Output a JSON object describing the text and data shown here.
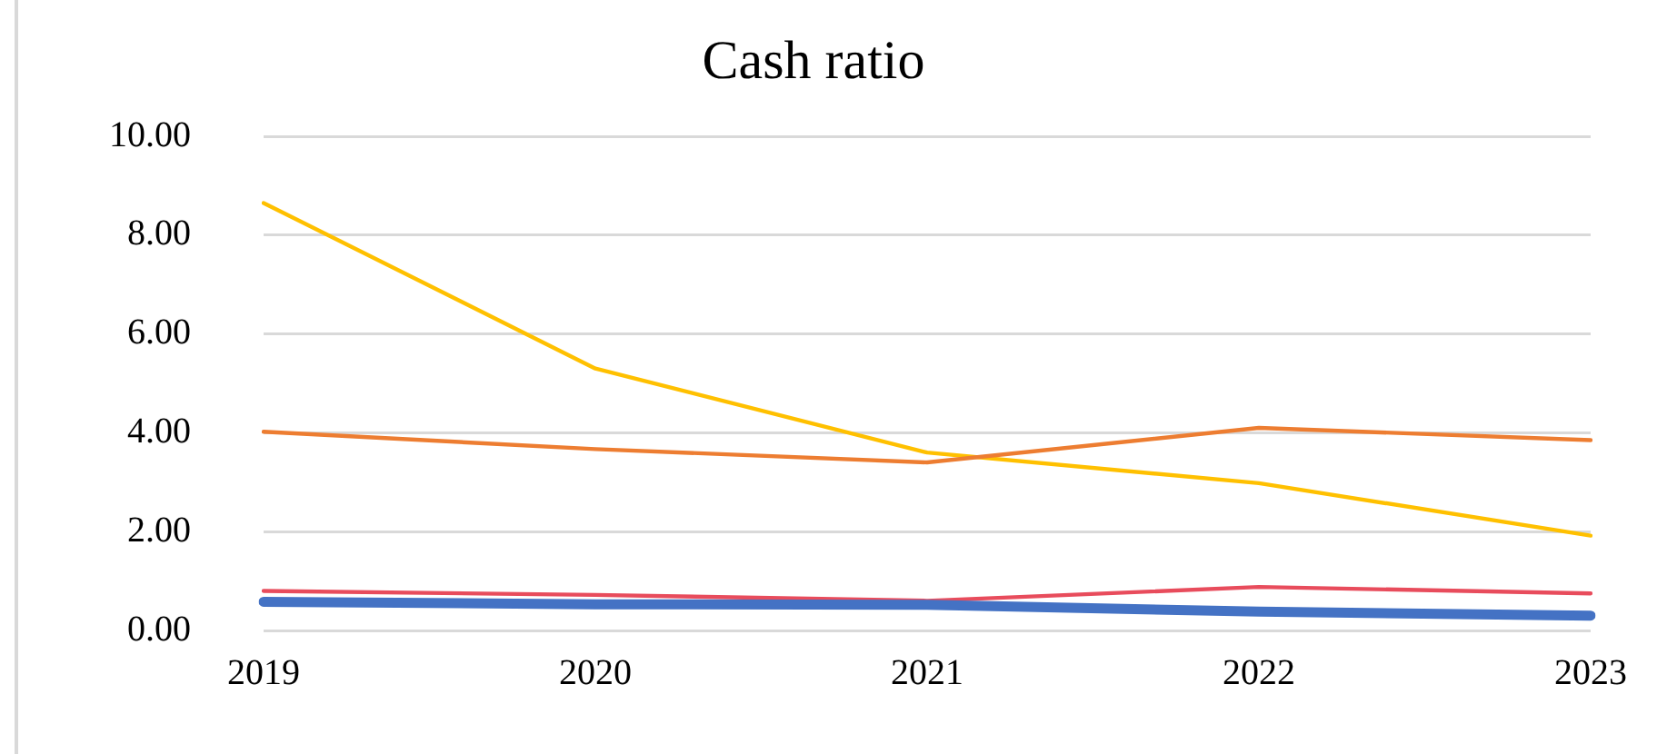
{
  "chart_data": {
    "type": "line",
    "title": "Cash ratio",
    "categories": [
      "2019",
      "2020",
      "2021",
      "2022",
      "2023"
    ],
    "series": [
      {
        "color": "#4472c4",
        "values": [
          0.58,
          0.53,
          0.52,
          0.38,
          0.3
        ]
      },
      {
        "color": "#e84c5c",
        "values": [
          0.8,
          0.72,
          0.6,
          0.88,
          0.75
        ]
      },
      {
        "color": "#ed7d31",
        "values": [
          4.02,
          3.67,
          3.4,
          4.1,
          3.85
        ]
      },
      {
        "color": "#ffc000",
        "values": [
          8.65,
          5.3,
          3.6,
          2.98,
          1.92
        ]
      }
    ],
    "ylim": [
      0,
      10
    ],
    "yticks": [
      {
        "value": 0,
        "label": "0.00"
      },
      {
        "value": 2,
        "label": "2.00"
      },
      {
        "value": 4,
        "label": "4.00"
      },
      {
        "value": 6,
        "label": "6.00"
      },
      {
        "value": 8,
        "label": "8.00"
      },
      {
        "value": 10,
        "label": "10.00"
      }
    ],
    "grid": "y",
    "legend": false,
    "marker": "none",
    "line_style": "solid"
  }
}
